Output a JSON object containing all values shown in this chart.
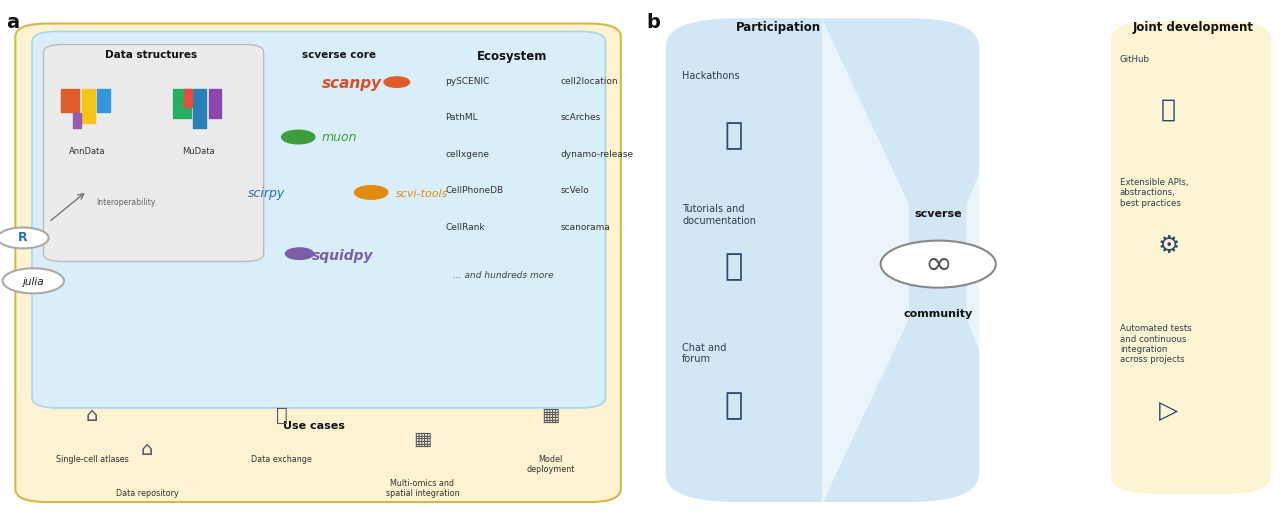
{
  "fig_width": 12.8,
  "fig_height": 5.23,
  "bg_color": "#ffffff",
  "panel_a_label": "a",
  "panel_b_label": "b",
  "outer_box_color": "#fdf3d0",
  "outer_box_ec": "#d4b84a",
  "inner_blue_color": "#daeef9",
  "inner_blue_ec": "#a8d4ee",
  "data_struct_box_color": "#ebebeb",
  "data_struct_box_ec": "#bbbbbb",
  "data_struct_title": "Data structures",
  "scverse_core_title": "scverse core",
  "ecosystem_title": "Ecosystem",
  "use_cases_title": "Use cases",
  "ecosystem_col1": [
    "pySCENIC",
    "PathML",
    "cellxgene",
    "CellPhoneDB",
    "CellRank"
  ],
  "ecosystem_col2": [
    "cell2location",
    "scArches",
    "dynamo-release",
    "scVelo",
    "scanorama"
  ],
  "ecosystem_more": "... and hundreds more",
  "anndata_label": "AnnData",
  "mudata_label": "MuData",
  "interop_label": "Interoperability",
  "participation_title": "Participation",
  "joint_dev_title": "Joint development",
  "scverse_label": "scverse",
  "community_label": "community",
  "blue_panel_color": "#cce5f5",
  "yellow_panel_color": "#fdf3d0",
  "text_dark": "#111111",
  "text_mid": "#333333",
  "text_light": "#555555",
  "icon_color": "#2c4a6e",
  "r_color": "#2c6eb5",
  "julia_color": "#1a1a2e"
}
